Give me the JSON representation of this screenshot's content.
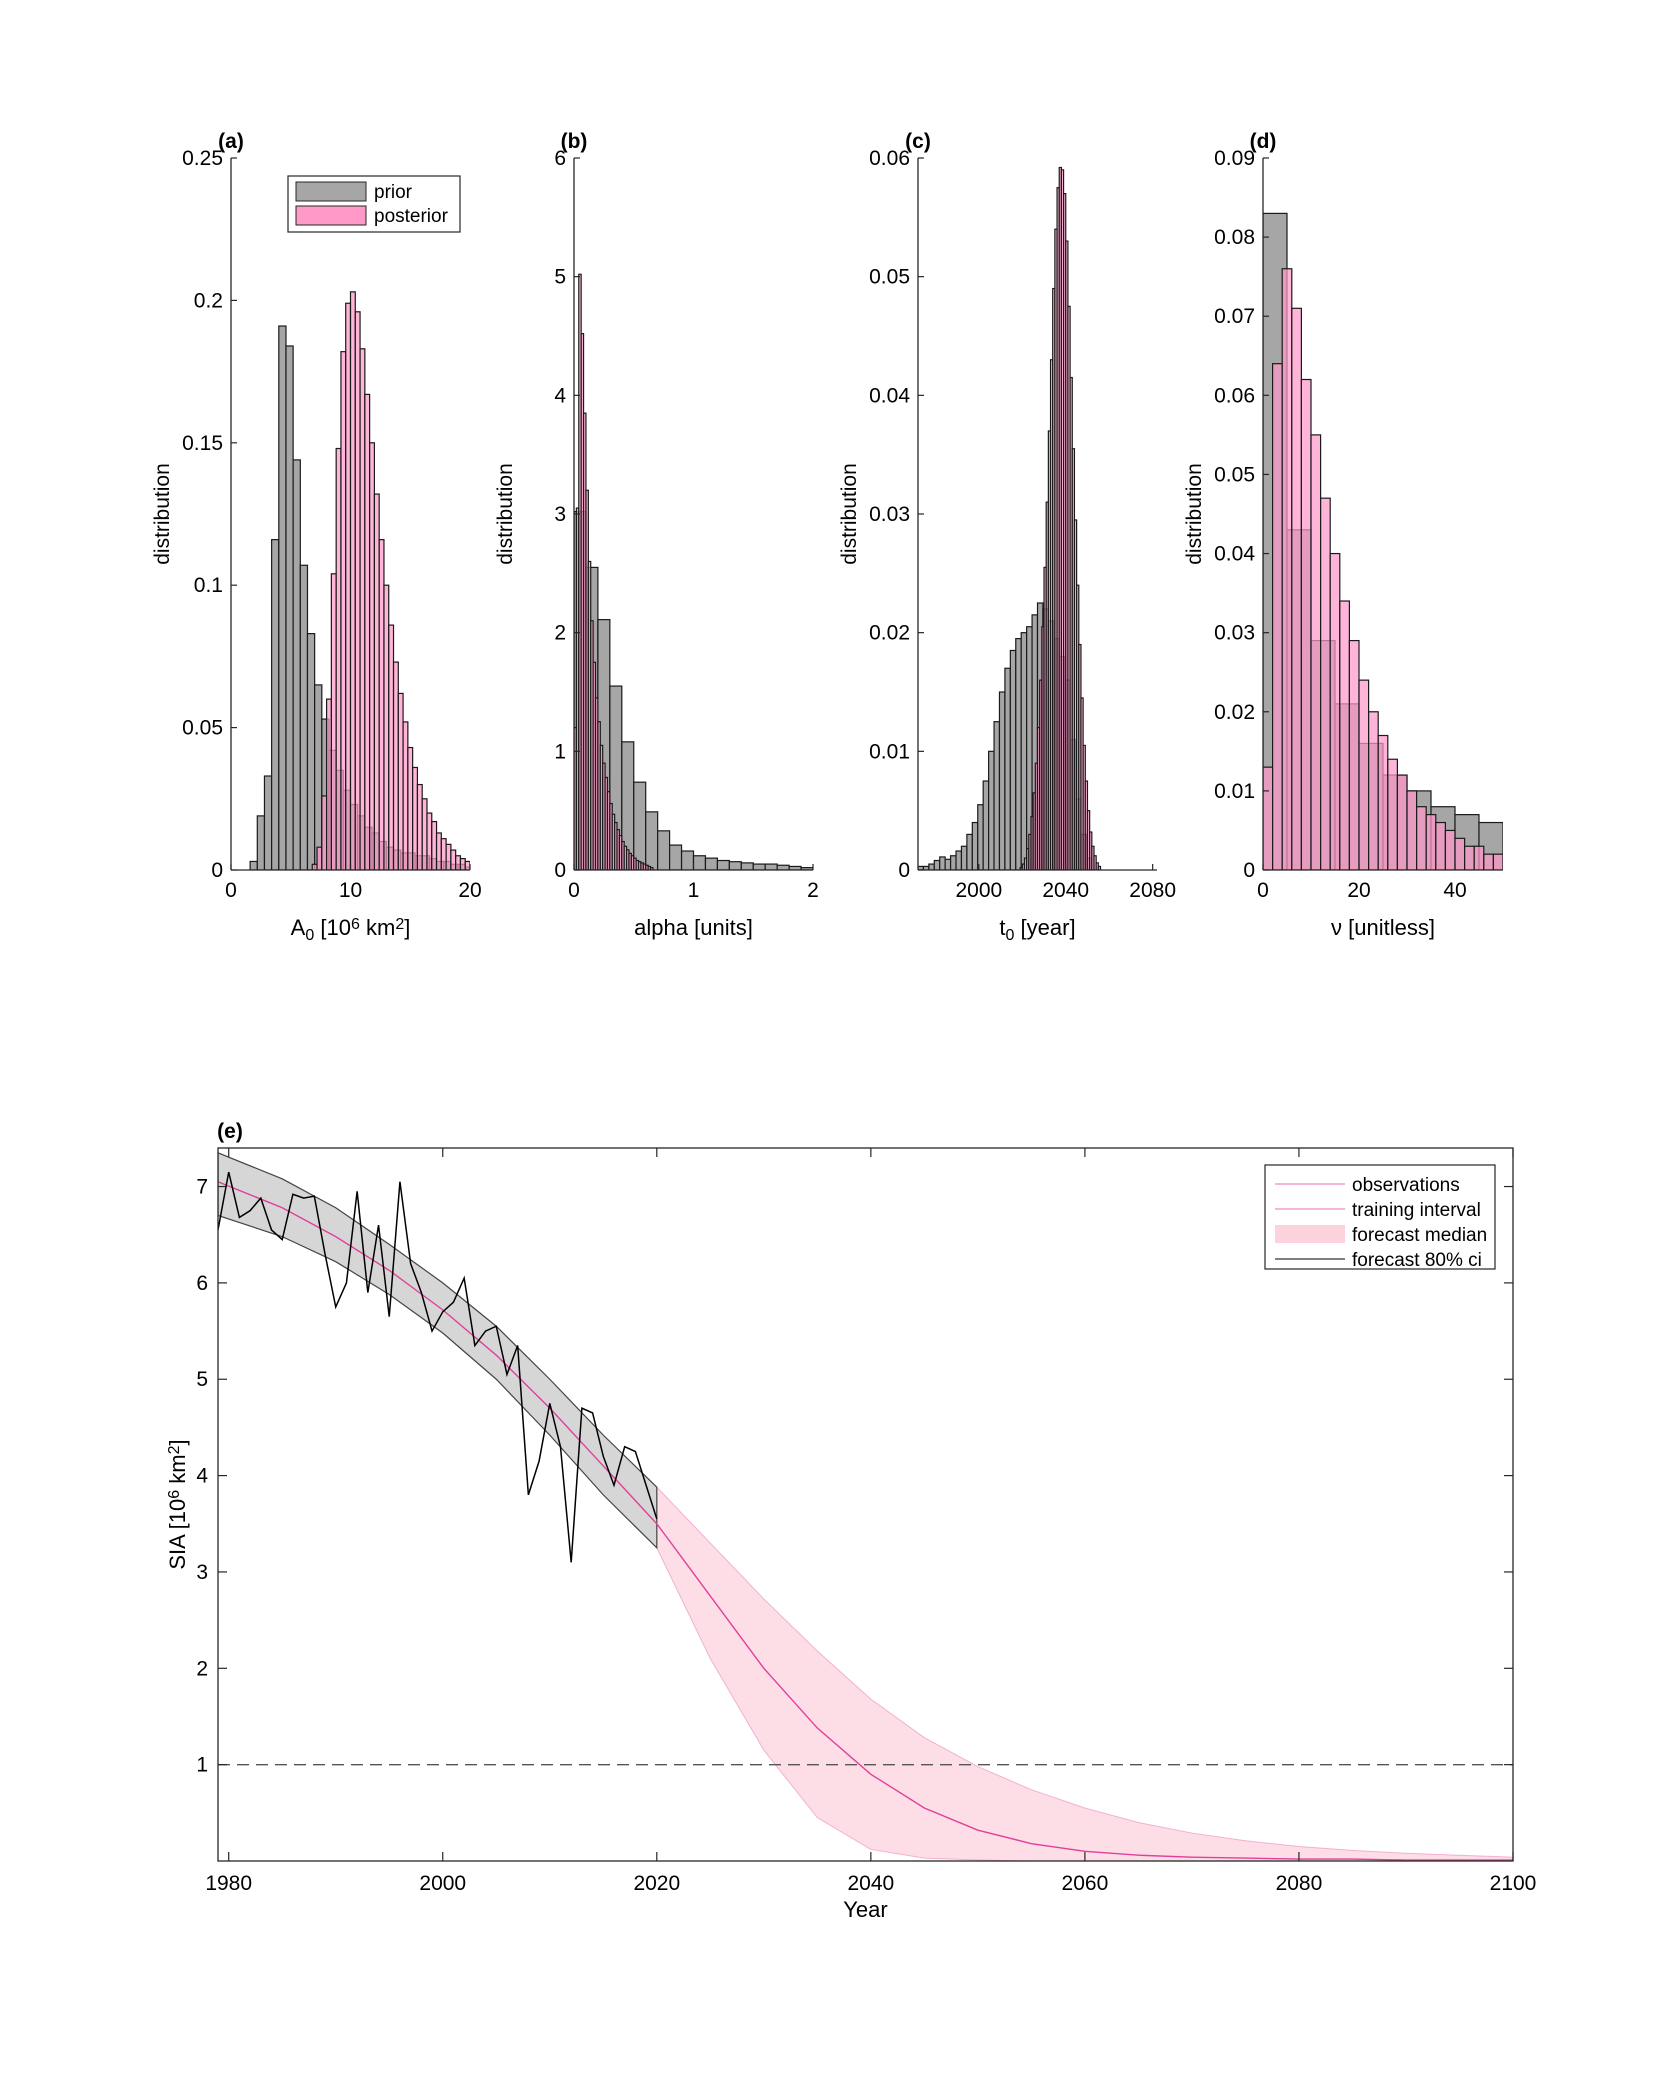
{
  "colors": {
    "prior": "#a6a6a6",
    "posterior": "#ff99c8",
    "overlap": "#a7305f",
    "outline": "#1a1a1a",
    "median_line": "#e0409a",
    "ci_band": "#fcd3dd",
    "training_band": "#d6d6d6",
    "observations_line": "#000000",
    "threshold_line": "#555555"
  },
  "chart_data": [
    {
      "type": "histogram",
      "panel_label": "(a)",
      "xlabel_main": "A",
      "xlabel_sub": "0",
      "xlabel_rest": " [10",
      "xlabel_sup": "6",
      "xlabel_tail": " km",
      "xlabel_sup2": "2",
      "xlabel_end": "]",
      "ylabel": "distribution",
      "xlim": [
        0,
        20
      ],
      "ylim": [
        0,
        0.25
      ],
      "xticks": [
        0,
        10,
        20
      ],
      "yticks": [
        0,
        0.05,
        0.1,
        0.15,
        0.2,
        0.25
      ],
      "ytick_labels": [
        "0",
        "0.05",
        "0.1",
        "0.15",
        "0.2",
        "0.25"
      ],
      "legend": {
        "entries": [
          "prior",
          "posterior"
        ]
      },
      "bin_width": 0.6,
      "prior": {
        "x0": 1.6,
        "values": [
          0.003,
          0.019,
          0.033,
          0.116,
          0.191,
          0.184,
          0.144,
          0.107,
          0.083,
          0.065,
          0.053,
          0.042,
          0.035,
          0.028,
          0.023,
          0.019,
          0.015,
          0.013,
          0.01,
          0.008,
          0.007,
          0.006,
          0.006,
          0.005,
          0.005,
          0.004,
          0.003,
          0.003,
          0.002,
          0.002,
          0.001
        ]
      },
      "posterior": {
        "x0": 6.8,
        "bin_width": 0.4,
        "values": [
          0.002,
          0.008,
          0.026,
          0.06,
          0.104,
          0.148,
          0.182,
          0.199,
          0.203,
          0.196,
          0.183,
          0.167,
          0.15,
          0.132,
          0.116,
          0.1,
          0.086,
          0.073,
          0.062,
          0.052,
          0.043,
          0.036,
          0.03,
          0.025,
          0.02,
          0.017,
          0.013,
          0.011,
          0.009,
          0.007,
          0.005,
          0.004,
          0.003,
          0.002
        ]
      }
    },
    {
      "type": "histogram",
      "panel_label": "(b)",
      "xlabel": "alpha [units]",
      "ylabel": "distribution",
      "xlim": [
        0,
        2
      ],
      "ylim": [
        0,
        6
      ],
      "xticks": [
        0,
        1,
        2
      ],
      "yticks": [
        0,
        1,
        2,
        3,
        4,
        5,
        6
      ],
      "ytick_labels": [
        "0",
        "1",
        "2",
        "3",
        "4",
        "5",
        "6"
      ],
      "prior": {
        "x0": 0,
        "bin_width": 0.1,
        "values": [
          3.02,
          2.55,
          2.11,
          1.55,
          1.08,
          0.74,
          0.49,
          0.33,
          0.21,
          0.16,
          0.12,
          0.1,
          0.08,
          0.07,
          0.06,
          0.05,
          0.05,
          0.04,
          0.03,
          0.02
        ]
      },
      "posterior": {
        "x0": 0,
        "bin_width": 0.02,
        "values": [
          1.2,
          3.05,
          5.02,
          4.52,
          3.85,
          3.2,
          2.6,
          2.1,
          1.75,
          1.45,
          1.25,
          1.05,
          0.9,
          0.78,
          0.66,
          0.56,
          0.47,
          0.4,
          0.34,
          0.29,
          0.24,
          0.2,
          0.17,
          0.14,
          0.12,
          0.1,
          0.08,
          0.07,
          0.06,
          0.05,
          0.04,
          0.03,
          0.02
        ]
      }
    },
    {
      "type": "histogram",
      "panel_label": "(c)",
      "xlabel_main": "t",
      "xlabel_sub": "0",
      "xlabel_rest": " [year]",
      "ylabel": "distribution",
      "xlim": [
        1972,
        2082
      ],
      "ylim": [
        0,
        0.06
      ],
      "xticks": [
        2000,
        2040,
        2080
      ],
      "yticks": [
        0,
        0.01,
        0.02,
        0.03,
        0.04,
        0.05,
        0.06
      ],
      "ytick_labels": [
        "0",
        "0.01",
        "0.02",
        "0.03",
        "0.04",
        "0.05",
        "0.06"
      ],
      "prior": {
        "x0": 1972,
        "bin_width": 2.5,
        "values": [
          0.0003,
          0.0003,
          0.0005,
          0.0008,
          0.0011,
          0.0009,
          0.0012,
          0.0016,
          0.002,
          0.003,
          0.004,
          0.0055,
          0.0075,
          0.01,
          0.0125,
          0.015,
          0.017,
          0.0185,
          0.0195,
          0.02,
          0.0205,
          0.0215,
          0.0225,
          0.022,
          0.021,
          0.0195,
          0.018,
          0.016,
          0.011,
          0.006,
          0.003,
          0.001
        ]
      },
      "posterior": {
        "x0": 2019,
        "bin_width": 1,
        "values": [
          0.0002,
          0.0005,
          0.001,
          0.0018,
          0.003,
          0.0045,
          0.0065,
          0.009,
          0.012,
          0.016,
          0.0205,
          0.0255,
          0.031,
          0.037,
          0.043,
          0.049,
          0.054,
          0.0575,
          0.0592,
          0.059,
          0.057,
          0.053,
          0.0475,
          0.0415,
          0.0355,
          0.0295,
          0.024,
          0.019,
          0.0145,
          0.0105,
          0.0075,
          0.005,
          0.0032,
          0.002,
          0.0012,
          0.0006,
          0.0003
        ]
      }
    },
    {
      "type": "histogram",
      "panel_label": "(d)",
      "xlabel": "ν [unitless]",
      "ylabel": "distribution",
      "xlim": [
        0,
        50
      ],
      "ylim": [
        0,
        0.09
      ],
      "xticks": [
        0,
        20,
        40
      ],
      "yticks": [
        0,
        0.01,
        0.02,
        0.03,
        0.04,
        0.05,
        0.06,
        0.07,
        0.08,
        0.09
      ],
      "ytick_labels": [
        "0",
        "0.01",
        "0.02",
        "0.03",
        "0.04",
        "0.05",
        "0.06",
        "0.07",
        "0.08",
        "0.09"
      ],
      "prior": {
        "x0": 0,
        "bin_width": 5,
        "values": [
          0.083,
          0.043,
          0.029,
          0.021,
          0.016,
          0.012,
          0.01,
          0.008,
          0.007,
          0.006
        ]
      },
      "posterior": {
        "x0": 0,
        "bin_width": 2,
        "values": [
          0.013,
          0.064,
          0.076,
          0.071,
          0.062,
          0.055,
          0.047,
          0.04,
          0.034,
          0.029,
          0.024,
          0.02,
          0.017,
          0.014,
          0.012,
          0.01,
          0.008,
          0.007,
          0.006,
          0.005,
          0.004,
          0.003,
          0.003,
          0.002,
          0.002
        ]
      }
    },
    {
      "type": "line",
      "panel_label": "(e)",
      "xlabel": "Year",
      "ylabel_main": "SIA [10",
      "ylabel_sup": "6",
      "ylabel_tail": " km",
      "ylabel_sup2": "2",
      "ylabel_end": "]",
      "xlim": [
        1979,
        2100
      ],
      "ylim": [
        0,
        7.4
      ],
      "xticks": [
        1980,
        2000,
        2020,
        2040,
        2060,
        2080,
        2100
      ],
      "yticks": [
        1,
        2,
        3,
        4,
        5,
        6,
        7
      ],
      "threshold": 1,
      "legend": {
        "entries": [
          "observations",
          "training interval",
          "forecast median",
          "forecast 80% ci"
        ]
      },
      "training_end": 2020,
      "observations": {
        "x": [
          1979,
          1980,
          1981,
          1982,
          1983,
          1984,
          1985,
          1986,
          1987,
          1988,
          1989,
          1990,
          1991,
          1992,
          1993,
          1994,
          1995,
          1996,
          1997,
          1998,
          1999,
          2000,
          2001,
          2002,
          2003,
          2004,
          2005,
          2006,
          2007,
          2008,
          2009,
          2010,
          2011,
          2012,
          2013,
          2014,
          2015,
          2016,
          2017,
          2018,
          2019,
          2020
        ],
        "y": [
          6.55,
          7.15,
          6.68,
          6.75,
          6.88,
          6.55,
          6.45,
          6.92,
          6.88,
          6.9,
          6.3,
          5.75,
          6.0,
          6.95,
          5.9,
          6.6,
          5.65,
          7.05,
          6.2,
          5.9,
          5.5,
          5.7,
          5.8,
          6.05,
          5.35,
          5.5,
          5.55,
          5.05,
          5.35,
          3.8,
          4.15,
          4.75,
          4.3,
          3.1,
          4.7,
          4.65,
          4.2,
          3.9,
          4.3,
          4.25,
          3.9,
          3.55
        ]
      },
      "forecast": {
        "x": [
          1979,
          1985,
          1990,
          1995,
          2000,
          2005,
          2010,
          2015,
          2020,
          2025,
          2030,
          2035,
          2040,
          2045,
          2050,
          2055,
          2060,
          2065,
          2070,
          2075,
          2080,
          2085,
          2090,
          2095,
          2100
        ],
        "median": [
          7.05,
          6.78,
          6.48,
          6.13,
          5.72,
          5.25,
          4.7,
          4.1,
          3.5,
          2.75,
          2.0,
          1.38,
          0.9,
          0.55,
          0.32,
          0.18,
          0.1,
          0.06,
          0.04,
          0.03,
          0.02,
          0.02,
          0.01,
          0.01,
          0.01
        ],
        "ci_low": [
          6.7,
          6.48,
          6.22,
          5.88,
          5.48,
          5.0,
          4.42,
          3.8,
          3.25,
          2.1,
          1.15,
          0.45,
          0.12,
          0.03,
          0.01,
          0.0,
          0.0,
          0.0,
          0.0,
          0.0,
          0.0,
          0.0,
          0.0,
          0.0,
          0.0
        ],
        "ci_high": [
          7.35,
          7.08,
          6.78,
          6.4,
          6.0,
          5.55,
          5.0,
          4.42,
          3.88,
          3.3,
          2.72,
          2.18,
          1.68,
          1.28,
          0.98,
          0.74,
          0.55,
          0.4,
          0.29,
          0.21,
          0.15,
          0.11,
          0.08,
          0.06,
          0.04
        ]
      }
    }
  ]
}
